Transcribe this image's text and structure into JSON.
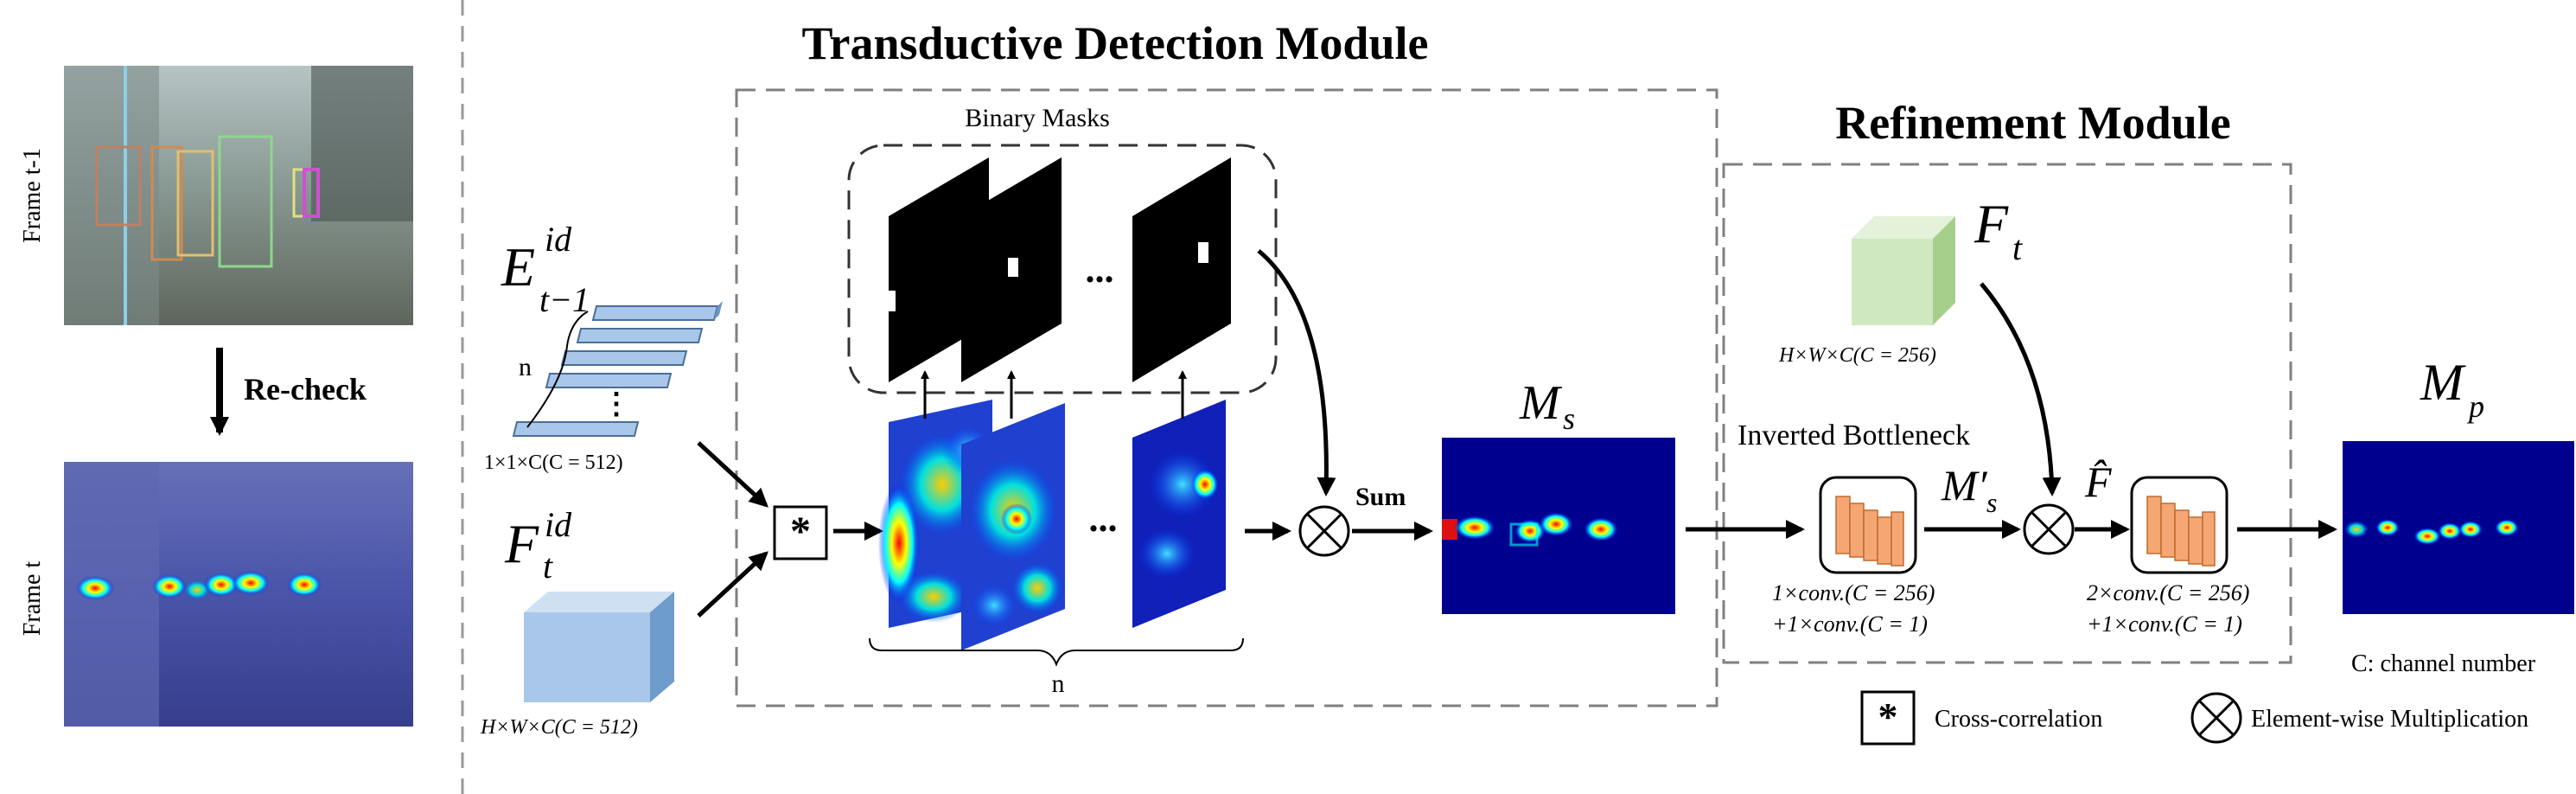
{
  "modules": {
    "transductive_title": "Transductive Detection Module",
    "refinement_title": "Refinement Module"
  },
  "frames": {
    "prev_label": "Frame t-1",
    "curr_label": "Frame t",
    "recheck_label": "Re-check"
  },
  "embeddings": {
    "E_base": "E",
    "E_sup": "id",
    "E_sub": "t−1",
    "n_label": "n",
    "dots": "⋮",
    "E_shape": "1×1×C(C = 512)",
    "F_base": "F",
    "F_sup": "id",
    "F_sub": "t",
    "F_shape": "H×W×C(C = 512)"
  },
  "masks": {
    "title": "Binary Masks",
    "dots_top": "...",
    "dots_bottom": "...",
    "n_label": "n"
  },
  "ops": {
    "sum_label": "Sum",
    "star_symbol": "*",
    "otimes_symbol": "⊗"
  },
  "maps": {
    "Ms_base": "M",
    "Ms_sub": "s",
    "Msp_base": "M′",
    "Msp_sub": "s",
    "Mp_base": "M",
    "Mp_sub": "p",
    "Fhat": "F̂"
  },
  "refinement": {
    "Ft_base": "F",
    "Ft_sub": "t",
    "Ft_shape": "H×W×C(C = 256)",
    "inverted_bottleneck": "Inverted  Bottleneck",
    "conv1_line1": "1×conv.(C = 256)",
    "conv1_line2": "+1×conv.(C = 1)",
    "conv2_line1": "2×conv.(C = 256)",
    "conv2_line2": "+1×conv.(C = 1)"
  },
  "legend": {
    "channel_note": "C: channel number",
    "cross_correlation": "Cross-correlation",
    "elementwise": "Element-wise Multiplication"
  },
  "colors": {
    "heat_bg": "#00008f",
    "dashed": "#808080",
    "cube_green": "#cfe8c0",
    "cube_blue": "#a9c7e8",
    "bar_orange": "#f4a772"
  }
}
